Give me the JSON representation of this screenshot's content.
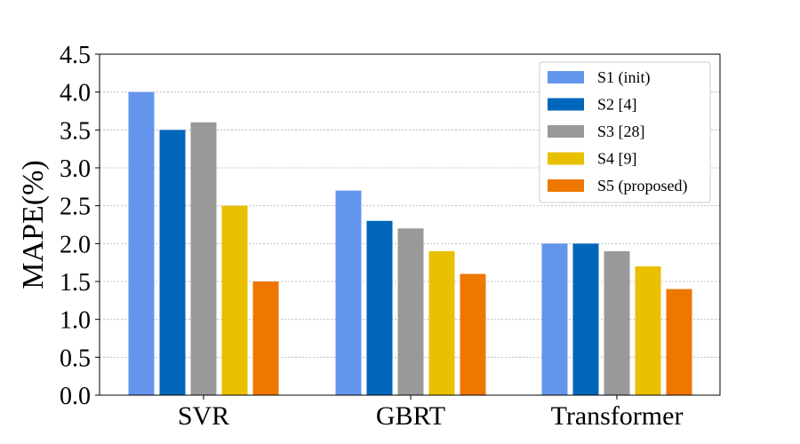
{
  "chart_data": {
    "type": "bar",
    "title": "",
    "xlabel": "",
    "ylabel": "MAPE(%)",
    "ylim": [
      0,
      4.5
    ],
    "yticks": [
      "0.0",
      "0.5",
      "1.0",
      "1.5",
      "2.0",
      "2.5",
      "3.0",
      "3.5",
      "4.0",
      "4.5"
    ],
    "grid": "horizontal dotted",
    "legend_position": "top-right",
    "categories": [
      "SVR",
      "GBRT",
      "Transformer"
    ],
    "series": [
      {
        "name": "S1 (init)",
        "color": "#6495ED",
        "values": [
          4.0,
          2.7,
          2.0
        ]
      },
      {
        "name": "S2 [4]",
        "color": "#0066BB",
        "values": [
          3.5,
          2.3,
          2.0
        ]
      },
      {
        "name": "S3 [28]",
        "color": "#999999",
        "values": [
          3.6,
          2.2,
          1.9
        ]
      },
      {
        "name": "S4 [9]",
        "color": "#E8C000",
        "values": [
          2.5,
          1.9,
          1.7
        ]
      },
      {
        "name": "S5 (proposed)",
        "color": "#EE7700",
        "values": [
          1.5,
          1.6,
          1.4
        ]
      }
    ]
  }
}
